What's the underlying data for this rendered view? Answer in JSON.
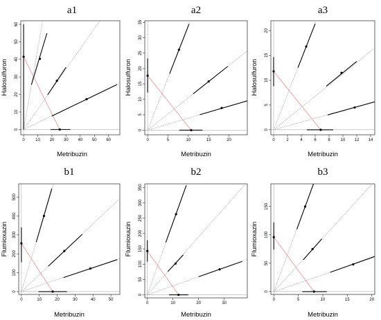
{
  "figure": {
    "panels": [
      {
        "id": "a1",
        "title": "a1",
        "xlabel": "Metribuzin",
        "ylabel": "Halosulfuron",
        "xticks": [
          0,
          10,
          20,
          30,
          40,
          50,
          60
        ],
        "yticks": [
          0,
          10,
          20,
          30,
          40,
          50,
          60
        ],
        "xlim": [
          -2,
          68
        ],
        "ylim": [
          -3,
          62
        ]
      },
      {
        "id": "a2",
        "title": "a2",
        "xlabel": "Metribuzin",
        "ylabel": "Halosulfuron",
        "xticks": [
          0,
          5,
          10,
          15,
          20
        ],
        "yticks": [
          0,
          5,
          10,
          15,
          20,
          25,
          30,
          35
        ],
        "xlim": [
          -0.7,
          24.5
        ],
        "ylim": [
          -1.5,
          35.5
        ]
      },
      {
        "id": "a3",
        "title": "a3",
        "xlabel": "Metribuzin",
        "ylabel": "Halosulfuron",
        "xticks": [
          0,
          2,
          4,
          6,
          8,
          10,
          12,
          14
        ],
        "yticks": [
          0,
          5,
          10,
          15,
          20
        ],
        "xlim": [
          -0.4,
          14.6
        ],
        "ylim": [
          -1,
          22
        ]
      },
      {
        "id": "b1",
        "title": "b1",
        "xlabel": "Metribuzin",
        "ylabel": "Flumioxazin",
        "xticks": [
          0,
          10,
          20,
          30,
          40,
          50
        ],
        "yticks": [
          0,
          100,
          200,
          300,
          400,
          500
        ],
        "xlim": [
          -1.5,
          55
        ],
        "ylim": [
          -15,
          570
        ]
      },
      {
        "id": "b2",
        "title": "b2",
        "xlabel": "Metribuzin",
        "ylabel": "Flumioxazin",
        "xticks": [
          0,
          10,
          20,
          30
        ],
        "yticks": [
          0,
          50,
          100,
          150,
          200,
          250,
          300,
          350
        ],
        "xlim": [
          -1,
          39
        ],
        "ylim": [
          -10,
          362
        ]
      },
      {
        "id": "b3",
        "title": "b3",
        "xlabel": "Metribuzin",
        "ylabel": "Flumioxazin",
        "xticks": [
          0,
          5,
          10,
          15,
          20
        ],
        "yticks": [
          0,
          50,
          100,
          150
        ],
        "xlim": [
          -0.6,
          20.6
        ],
        "ylim": [
          -5,
          190
        ]
      }
    ]
  },
  "chart_data": [
    {
      "id": "a1",
      "type": "scatter",
      "title": "a1",
      "xlabel": "Metribuzin",
      "ylabel": "Halosulfuron",
      "xlim": [
        -2,
        68
      ],
      "ylim": [
        -3,
        62
      ],
      "grid": false,
      "rays_through_origin_slopes": [
        0.39,
        1.15,
        4.6
      ],
      "mixture_points": [
        {
          "x": 44.5,
          "y": 17.3,
          "x_interval": [
            20,
            66
          ],
          "y_interval": [
            7.7,
            25.6
          ]
        },
        {
          "x": 23.5,
          "y": 27.8,
          "x_interval": [
            17,
            30
          ],
          "y_interval": [
            19.8,
            35.5
          ]
        },
        {
          "x": 11.5,
          "y": 40.3,
          "x_interval": [
            5.5,
            16.5
          ],
          "y_interval": [
            25.5,
            54.9
          ]
        }
      ],
      "single_agent_points": [
        {
          "x": 25.5,
          "y": 0,
          "x_interval": [
            19,
            33
          ]
        },
        {
          "x": 0,
          "y": 41.5,
          "y_interval": [
            0,
            60
          ]
        }
      ]
    },
    {
      "id": "a2",
      "type": "scatter",
      "title": "a2",
      "xlabel": "Metribuzin",
      "ylabel": "Halosulfuron",
      "xlim": [
        -0.7,
        24.5
      ],
      "ylim": [
        -1.5,
        35.5
      ],
      "grid": false,
      "rays_through_origin_slopes": [
        0.39,
        1.05,
        3.38
      ],
      "mixture_points": [
        {
          "x": 18.2,
          "y": 7.2,
          "x_interval": [
            12.8,
            24.5
          ],
          "y_interval": [
            5.0,
            9.5
          ]
        },
        {
          "x": 15.0,
          "y": 15.8,
          "x_interval": [
            11.2,
            19.7
          ],
          "y_interval": [
            11.8,
            20.7
          ]
        },
        {
          "x": 7.7,
          "y": 26.1,
          "x_interval": [
            5.4,
            10.2
          ],
          "y_interval": [
            18.3,
            34.5
          ]
        }
      ],
      "single_agent_points": [
        {
          "x": 10.7,
          "y": 0,
          "x_interval": [
            7.8,
            13.5
          ]
        },
        {
          "x": 0,
          "y": 17.7,
          "y_interval": [
            12.2,
            23.3
          ]
        }
      ]
    },
    {
      "id": "a3",
      "type": "scatter",
      "title": "a3",
      "xlabel": "Metribuzin",
      "ylabel": "Halosulfuron",
      "xlim": [
        -0.4,
        14.6
      ],
      "ylim": [
        -1,
        22
      ],
      "grid": false,
      "rays_through_origin_slopes": [
        0.39,
        1.13,
        3.58
      ],
      "mixture_points": [
        {
          "x": 11.7,
          "y": 4.5,
          "x_interval": [
            7.8,
            15.0
          ],
          "y_interval": [
            3.0,
            5.8
          ]
        },
        {
          "x": 9.8,
          "y": 11.5,
          "x_interval": [
            7.6,
            12.0
          ],
          "y_interval": [
            8.8,
            13.8
          ]
        },
        {
          "x": 4.7,
          "y": 16.8,
          "x_interval": [
            3.5,
            6.0
          ],
          "y_interval": [
            12.5,
            21.4
          ]
        }
      ],
      "single_agent_points": [
        {
          "x": 6.8,
          "y": 0,
          "x_interval": [
            4.8,
            8.6
          ]
        },
        {
          "x": 0,
          "y": 11.8,
          "y_interval": [
            8.8,
            14.7
          ]
        }
      ]
    },
    {
      "id": "b1",
      "type": "scatter",
      "title": "b1",
      "xlabel": "Metribuzin",
      "ylabel": "Flumioxazin",
      "xlim": [
        -1.5,
        55
      ],
      "ylim": [
        -15,
        570
      ],
      "grid": false,
      "rays_through_origin_slopes": [
        3.18,
        8.95,
        31.7
      ],
      "mixture_points": [
        {
          "x": 38.5,
          "y": 122,
          "x_interval": [
            23.5,
            53.5
          ],
          "y_interval": [
            74,
            169
          ]
        },
        {
          "x": 24.0,
          "y": 215,
          "x_interval": [
            15.0,
            34.0
          ],
          "y_interval": [
            134,
            303
          ]
        },
        {
          "x": 12.6,
          "y": 400,
          "x_interval": [
            8.3,
            17.0
          ],
          "y_interval": [
            262,
            545
          ]
        }
      ],
      "single_agent_points": [
        {
          "x": 17.5,
          "y": 0,
          "x_interval": [
            9.5,
            25.5
          ]
        },
        {
          "x": 0,
          "y": 255,
          "y_interval": [
            155,
            340
          ]
        }
      ]
    },
    {
      "id": "b2",
      "type": "scatter",
      "title": "b2",
      "xlabel": "Metribuzin",
      "ylabel": "Flumioxazin",
      "xlim": [
        -1,
        39
      ],
      "ylim": [
        -10,
        362
      ],
      "grid": false,
      "rays_through_origin_slopes": [
        2.95,
        9.45,
        23.5
      ],
      "mixture_points": [
        {
          "x": 28.2,
          "y": 83,
          "x_interval": [
            20,
            37
          ],
          "y_interval": [
            59,
            109
          ]
        },
        {
          "x": 11.0,
          "y": 102,
          "x_interval": [
            8,
            14
          ],
          "y_interval": [
            76,
            130
          ]
        },
        {
          "x": 11.2,
          "y": 263,
          "x_interval": [
            7.2,
            15.2
          ],
          "y_interval": [
            171,
            357
          ]
        }
      ],
      "single_agent_points": [
        {
          "x": 12.2,
          "y": 0,
          "x_interval": [
            8.5,
            16.0
          ]
        },
        {
          "x": 0,
          "y": 143,
          "y_interval": [
            108,
            178
          ]
        }
      ]
    },
    {
      "id": "b3",
      "type": "scatter",
      "title": "b3",
      "xlabel": "Metribuzin",
      "ylabel": "Flumioxazin",
      "xlim": [
        -0.6,
        20.6
      ],
      "ylim": [
        -5,
        190
      ],
      "grid": false,
      "rays_through_origin_slopes": [
        2.95,
        9.45,
        23.5
      ],
      "mixture_points": [
        {
          "x": 16.2,
          "y": 48,
          "x_interval": [
            11.5,
            20.6
          ],
          "y_interval": [
            34,
            62
          ]
        },
        {
          "x": 7.9,
          "y": 75,
          "x_interval": [
            6.0,
            9.8
          ],
          "y_interval": [
            56,
            93
          ]
        },
        {
          "x": 6.4,
          "y": 150,
          "x_interval": [
            4.7,
            8.1
          ],
          "y_interval": [
            110,
            190
          ]
        }
      ],
      "single_agent_points": [
        {
          "x": 8.2,
          "y": 0,
          "x_interval": [
            5.8,
            10.8
          ]
        },
        {
          "x": 0,
          "y": 96,
          "y_interval": [
            74,
            122
          ]
        }
      ]
    }
  ],
  "colors": {
    "axis": "#000000",
    "ray": "#9a9a9a",
    "segment": "#000000",
    "isobole": "#f4a0a0",
    "background": "#ffffff"
  }
}
